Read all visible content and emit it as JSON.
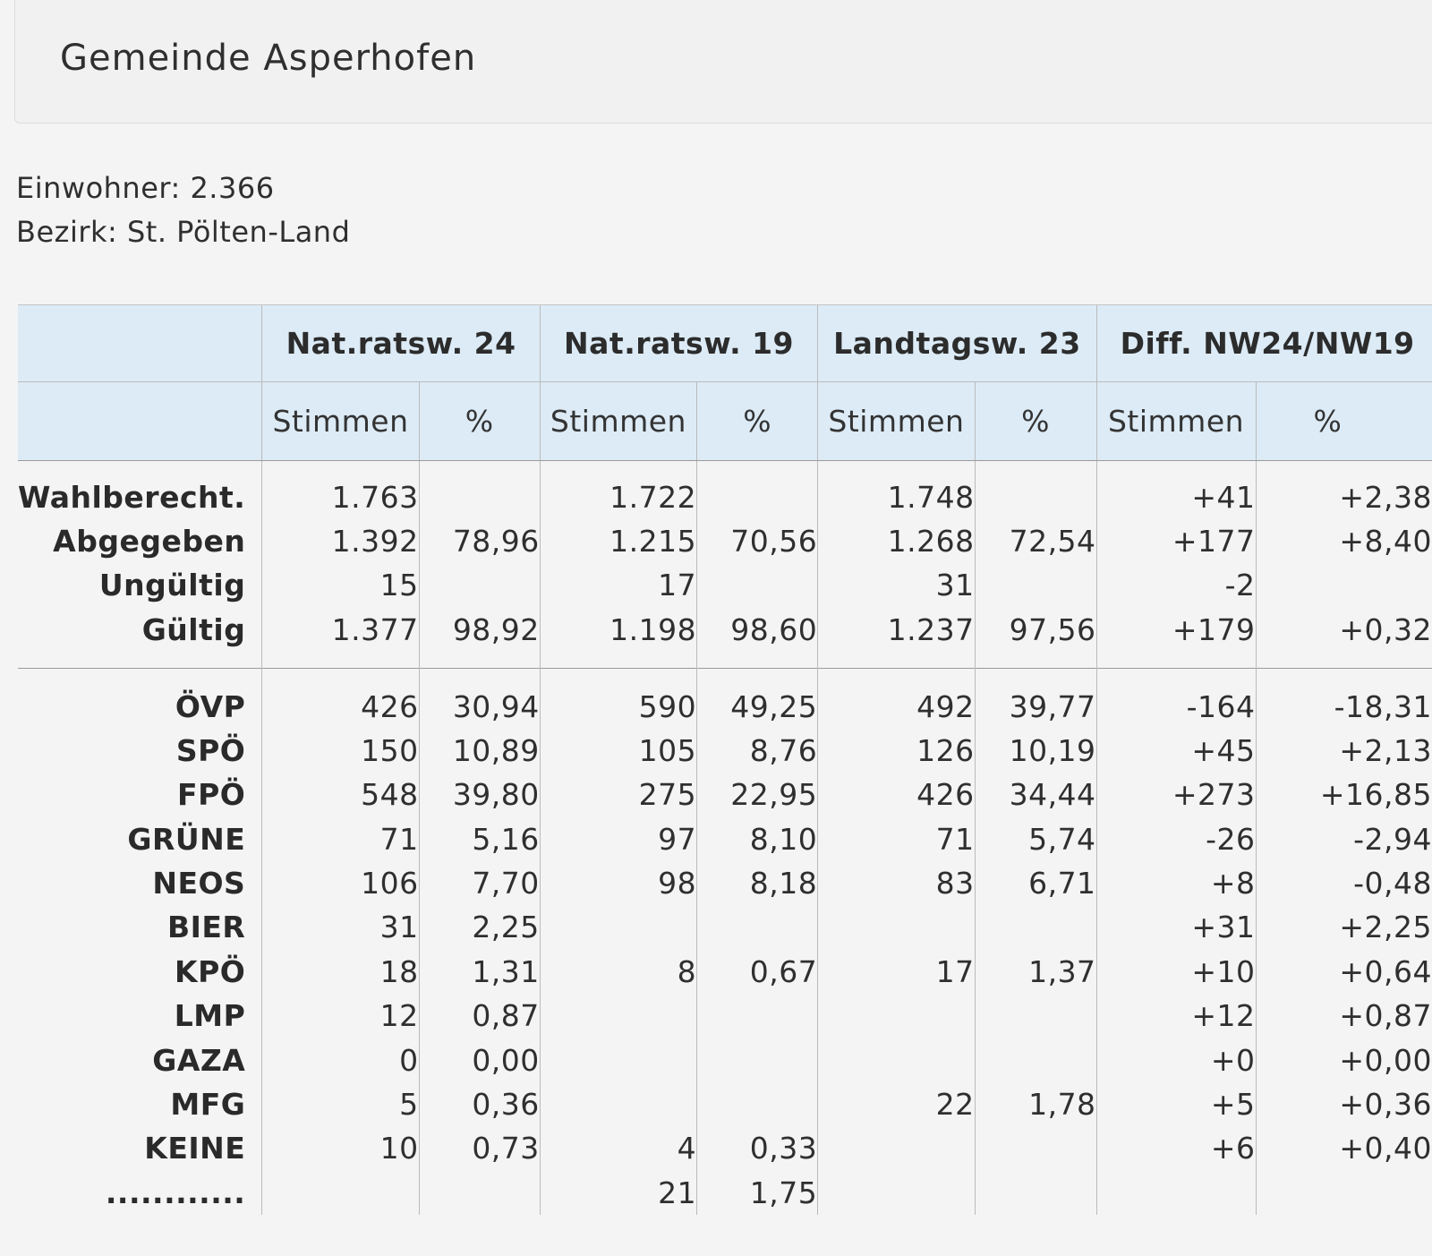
{
  "page": {
    "title": "Gemeinde Asperhofen",
    "einwohner": "Einwohner: 2.366",
    "bezirk": "Bezirk: St. Pölten-Land"
  },
  "table": {
    "groups": [
      "Nat.ratsw. 24",
      "Nat.ratsw. 19",
      "Landtagsw. 23",
      "Diff. NW24/NW19"
    ],
    "subheaders": [
      "Stimmen",
      "%",
      "Stimmen",
      "%",
      "Stimmen",
      "%",
      "Stimmen",
      "%"
    ],
    "summary_rows": [
      {
        "label": "Wahlberecht.",
        "cells": [
          "1.763",
          "",
          "1.722",
          "",
          "1.748",
          "",
          "+41",
          "+2,38"
        ]
      },
      {
        "label": "Abgegeben",
        "cells": [
          "1.392",
          "78,96",
          "1.215",
          "70,56",
          "1.268",
          "72,54",
          "+177",
          "+8,40"
        ]
      },
      {
        "label": "Ungültig",
        "cells": [
          "15",
          "",
          "17",
          "",
          "31",
          "",
          "-2",
          ""
        ]
      },
      {
        "label": "Gültig",
        "cells": [
          "1.377",
          "98,92",
          "1.198",
          "98,60",
          "1.237",
          "97,56",
          "+179",
          "+0,32"
        ]
      }
    ],
    "party_rows": [
      {
        "label": "ÖVP",
        "cells": [
          "426",
          "30,94",
          "590",
          "49,25",
          "492",
          "39,77",
          "-164",
          "-18,31"
        ]
      },
      {
        "label": "SPÖ",
        "cells": [
          "150",
          "10,89",
          "105",
          "8,76",
          "126",
          "10,19",
          "+45",
          "+2,13"
        ]
      },
      {
        "label": "FPÖ",
        "cells": [
          "548",
          "39,80",
          "275",
          "22,95",
          "426",
          "34,44",
          "+273",
          "+16,85"
        ]
      },
      {
        "label": "GRÜNE",
        "cells": [
          "71",
          "5,16",
          "97",
          "8,10",
          "71",
          "5,74",
          "-26",
          "-2,94"
        ]
      },
      {
        "label": "NEOS",
        "cells": [
          "106",
          "7,70",
          "98",
          "8,18",
          "83",
          "6,71",
          "+8",
          "-0,48"
        ]
      },
      {
        "label": "BIER",
        "cells": [
          "31",
          "2,25",
          "",
          "",
          "",
          "",
          "+31",
          "+2,25"
        ]
      },
      {
        "label": "KPÖ",
        "cells": [
          "18",
          "1,31",
          "8",
          "0,67",
          "17",
          "1,37",
          "+10",
          "+0,64"
        ]
      },
      {
        "label": "LMP",
        "cells": [
          "12",
          "0,87",
          "",
          "",
          "",
          "",
          "+12",
          "+0,87"
        ]
      },
      {
        "label": "GAZA",
        "cells": [
          "0",
          "0,00",
          "",
          "",
          "",
          "",
          "+0",
          "+0,00"
        ]
      },
      {
        "label": "MFG",
        "cells": [
          "5",
          "0,36",
          "",
          "",
          "22",
          "1,78",
          "+5",
          "+0,36"
        ]
      },
      {
        "label": "KEINE",
        "cells": [
          "10",
          "0,73",
          "4",
          "0,33",
          "",
          "",
          "+6",
          "+0,40"
        ]
      },
      {
        "label": "............",
        "cells": [
          "",
          "",
          "21",
          "1,75",
          "",
          "",
          "",
          ""
        ]
      }
    ]
  }
}
